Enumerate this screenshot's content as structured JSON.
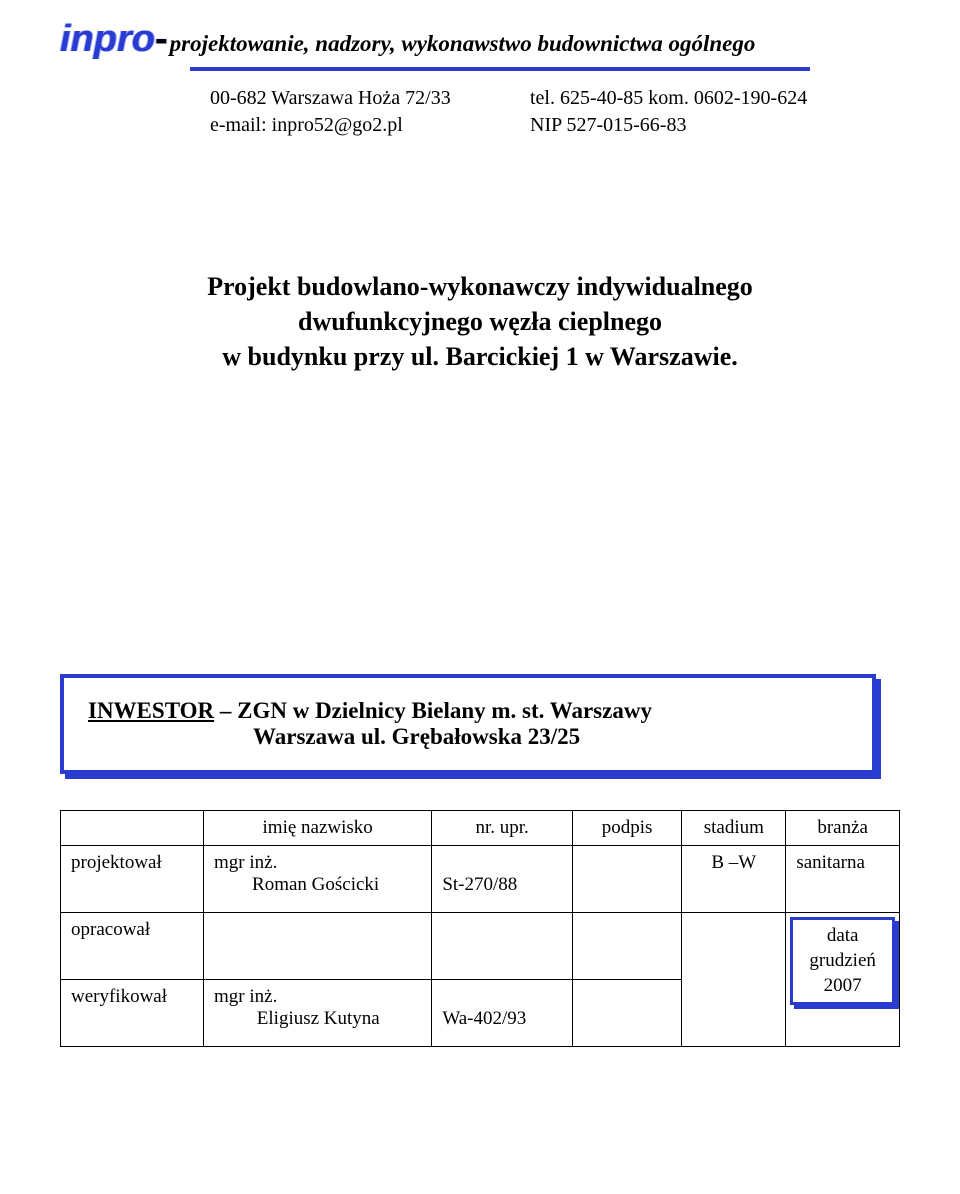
{
  "colors": {
    "accent": "#2a3cd0",
    "text": "#000000",
    "background": "#ffffff"
  },
  "header": {
    "logo": "inpro",
    "dash": "-",
    "tagline": "projektowanie, nadzory, wykonawstwo budownictwa ogólnego"
  },
  "contact": {
    "address": "00-682 Warszawa Hoża 72/33",
    "email_label": "e-mail: inpro52@go2.pl",
    "tel": "tel. 625-40-85   kom. 0602-190-624",
    "nip": "NIP 527-015-66-83"
  },
  "title": {
    "line1": "Projekt budowlano-wykonawczy indywidualnego",
    "line2": "dwufunkcyjnego węzła cieplnego",
    "line3": "w budynku  przy ul. Barcickiej 1 w Warszawie."
  },
  "investor": {
    "label": "INWESTOR",
    "dash": " – ",
    "line1_rest": "ZGN w Dzielnicy Bielany m. st. Warszawy",
    "line2": "Warszawa ul. Grębałowska 23/25"
  },
  "table": {
    "headers": {
      "role": "",
      "name": "imię nazwisko",
      "nr": "nr. upr.",
      "podpis": "podpis",
      "stadium": "stadium",
      "branza": "branża"
    },
    "rows": [
      {
        "role": "projektował",
        "name_line1": "mgr inż.",
        "name_line2": "        Roman Gościcki",
        "nr": "St-270/88",
        "podpis": "",
        "stadium": "B –W",
        "branza": "sanitarna"
      },
      {
        "role": "opracował",
        "name_line1": "",
        "name_line2": "",
        "nr": "",
        "podpis": "",
        "stadium": "",
        "branza": ""
      },
      {
        "role": "weryfikował",
        "name_line1": "mgr inż.",
        "name_line2": "         Eligiusz Kutyna",
        "nr": "Wa-402/93",
        "podpis": "",
        "stadium": "",
        "branza": ""
      }
    ],
    "date": {
      "label": "data",
      "month": "grudzień",
      "year": "2007"
    }
  }
}
